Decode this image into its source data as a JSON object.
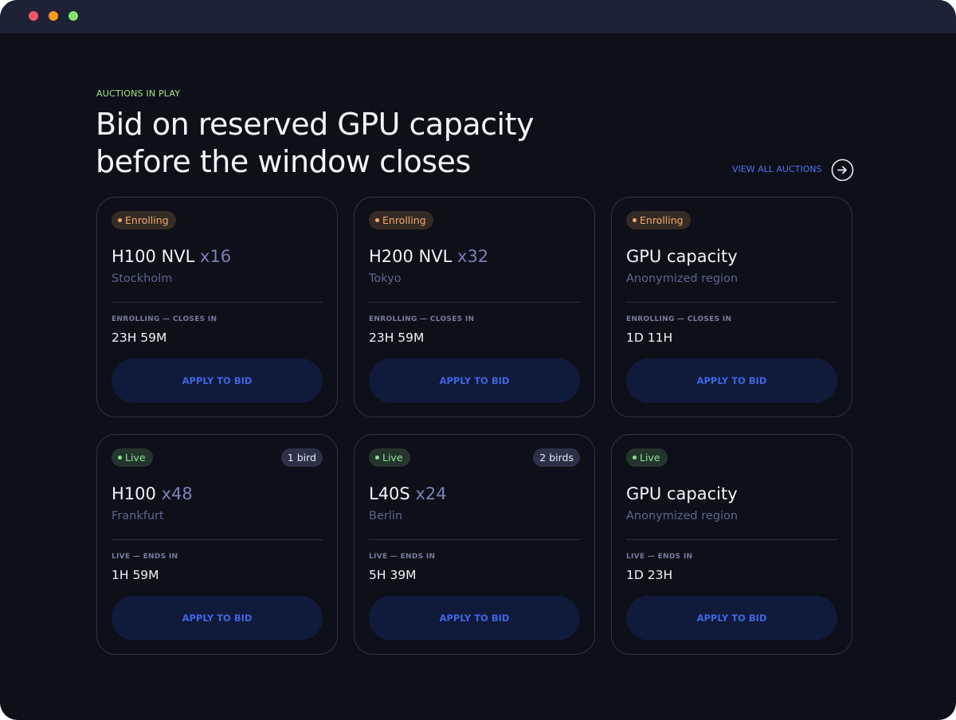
{
  "header": {
    "eyebrow": "AUCTIONS IN PLAY",
    "title": [
      "Bid on reserved GPU capacity",
      "before the window closes"
    ],
    "link": "VIEW ALL AUCTIONS"
  },
  "cards": [
    {
      "status": "Enrolling",
      "status_color": "#f0a868",
      "model": "H100 NVL",
      "count": "x16",
      "location": "Stockholm",
      "timer_label": "ENROLLING — CLOSES IN",
      "timer": "23H 59M",
      "button": "APPLY TO BID"
    },
    {
      "status": "Enrolling",
      "status_color": "#f0a868",
      "model": "H200 NVL",
      "count": "x32",
      "location": "Tokyo",
      "timer_label": "ENROLLING — CLOSES IN",
      "timer": "23H 59M",
      "button": "APPLY TO BID"
    },
    {
      "status": "Enrolling",
      "status_color": "#f0a868",
      "model": "GPU capacity",
      "location": "Anonymized region",
      "timer_label": "ENROLLING — CLOSES IN",
      "timer": "1D 11H",
      "button": "APPLY TO BID"
    },
    {
      "status": "Live",
      "status_color": "#8fe08f",
      "bids": "1 bird",
      "model": "H100",
      "count": "x48",
      "location": "Frankfurt",
      "timer_label": "LIVE — ENDS IN",
      "timer": "1H 59M",
      "button": "APPLY TO BID"
    },
    {
      "status": "Live",
      "status_color": "#8fe08f",
      "bids": "2 birds",
      "model": "L40S",
      "count": "x24",
      "location": "Berlin",
      "timer_label": "LIVE — ENDS IN",
      "timer": "5H 39M",
      "button": "APPLY TO BID"
    },
    {
      "status": "Live",
      "status_color": "#8fe08f",
      "model": "GPU capacity",
      "location": "Anonymized region",
      "timer_label": "LIVE — ENDS IN",
      "timer": "1D 23H",
      "button": "APPLY TO BID"
    }
  ]
}
